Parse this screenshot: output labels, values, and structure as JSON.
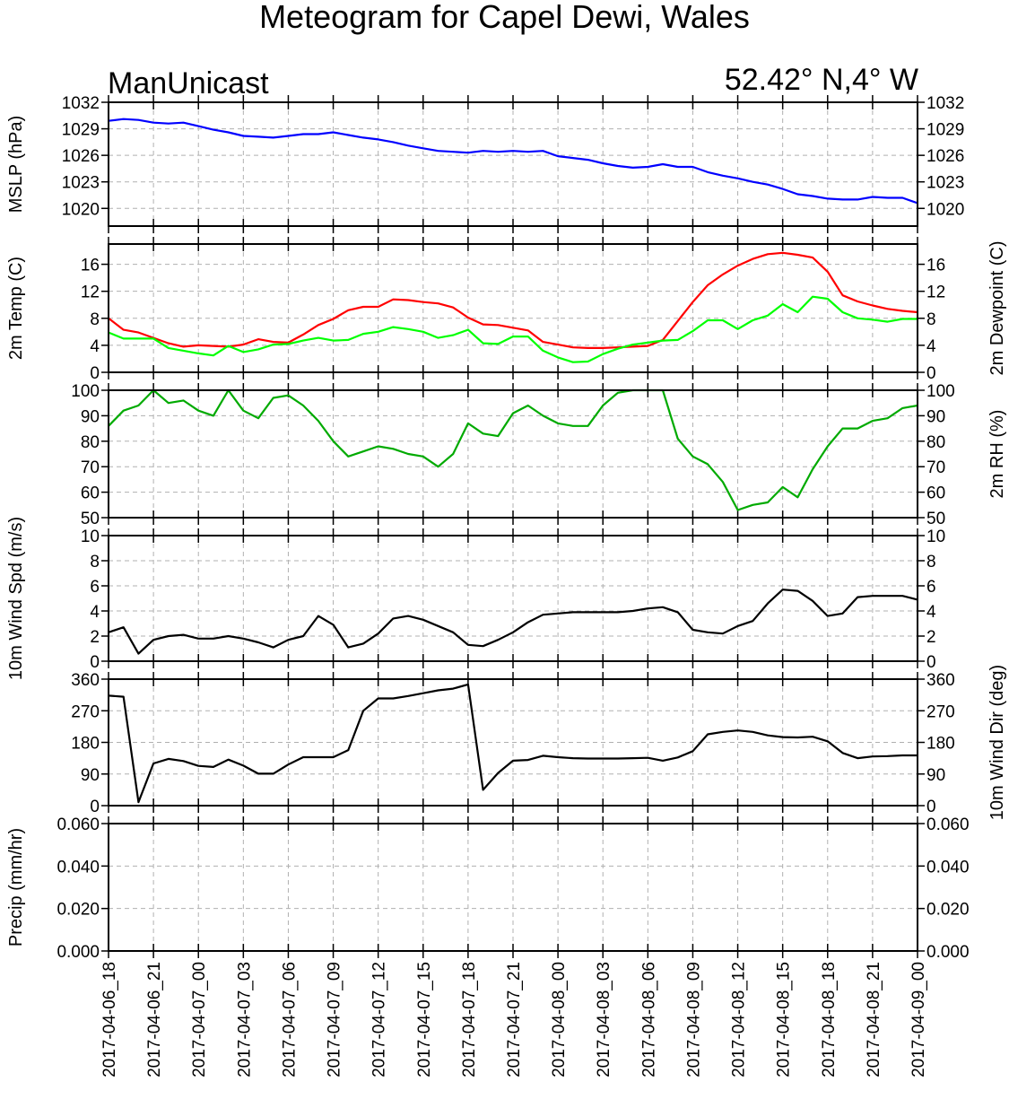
{
  "header": {
    "title": "Meteogram for Capel Dewi, Wales",
    "model": "ManUnicast",
    "location": "52.42° N,4° W"
  },
  "colors": {
    "mslp": "#0000ff",
    "temp": "#ff0000",
    "dewpoint": "#00ff00",
    "rh": "#00aa00",
    "wind": "#000000",
    "grid": "#b0b0b0"
  },
  "chart_data": {
    "type": "line",
    "grid": true,
    "x_ticks": [
      "2017-04-06_18",
      "2017-04-06_21",
      "2017-04-07_00",
      "2017-04-07_03",
      "2017-04-07_06",
      "2017-04-07_09",
      "2017-04-07_12",
      "2017-04-07_15",
      "2017-04-07_18",
      "2017-04-07_21",
      "2017-04-08_00",
      "2017-04-08_03",
      "2017-04-08_06",
      "2017-04-08_09",
      "2017-04-08_12",
      "2017-04-08_15",
      "2017-04-08_18",
      "2017-04-08_21",
      "2017-04-09_00"
    ],
    "x_hours": [
      0,
      1,
      2,
      3,
      4,
      5,
      6,
      7,
      8,
      9,
      10,
      11,
      12,
      13,
      14,
      15,
      16,
      17,
      18,
      19,
      20,
      21,
      22,
      23,
      24,
      25,
      26,
      27,
      28,
      29,
      30,
      31,
      32,
      33,
      34,
      35,
      36,
      37,
      38,
      39,
      40,
      41,
      42,
      43,
      44,
      45,
      46,
      47,
      48,
      49,
      50,
      51,
      52,
      53,
      54
    ],
    "panels": [
      {
        "id": "mslp",
        "ylabel_left": "MSLP (hPa)",
        "ylim": [
          1018,
          1032
        ],
        "yticks": [
          1020,
          1023,
          1026,
          1029,
          1032
        ],
        "tick_labels_right": true,
        "series": [
          {
            "color": "#0000ff",
            "values": [
              1029.9,
              1030.1,
              1030.0,
              1029.7,
              1029.6,
              1029.7,
              1029.3,
              1028.9,
              1028.6,
              1028.2,
              1028.1,
              1028.0,
              1028.2,
              1028.4,
              1028.4,
              1028.6,
              1028.3,
              1028.0,
              1027.8,
              1027.5,
              1027.1,
              1026.8,
              1026.5,
              1026.4,
              1026.3,
              1026.5,
              1026.4,
              1026.5,
              1026.4,
              1026.5,
              1025.9,
              1025.7,
              1025.5,
              1025.1,
              1024.8,
              1024.6,
              1024.7,
              1025.0,
              1024.7,
              1024.7,
              1024.1,
              1023.7,
              1023.4,
              1023.0,
              1022.7,
              1022.2,
              1021.6,
              1021.4,
              1021.1,
              1021.0,
              1021.0,
              1021.3,
              1021.2,
              1021.2,
              1020.6
            ]
          }
        ]
      },
      {
        "id": "temp",
        "ylabel_left": "2m Temp (C)",
        "ylabel_right": "2m Dewpoint (C)",
        "ylim": [
          0,
          19
        ],
        "yticks": [
          0,
          4,
          8,
          12,
          16
        ],
        "tick_labels_right": true,
        "series": [
          {
            "color": "#ff0000",
            "values": [
              8.0,
              6.3,
              5.9,
              5.1,
              4.3,
              3.8,
              4.0,
              3.9,
              3.8,
              4.1,
              4.9,
              4.5,
              4.4,
              5.6,
              7.0,
              7.9,
              9.2,
              9.7,
              9.7,
              10.8,
              10.7,
              10.4,
              10.2,
              9.6,
              8.1,
              7.1,
              7.0,
              6.6,
              6.2,
              4.5,
              4.1,
              3.7,
              3.6,
              3.6,
              3.7,
              3.8,
              3.9,
              4.8,
              7.6,
              10.4,
              12.9,
              14.5,
              15.8,
              16.8,
              17.5,
              17.7,
              17.4,
              17.0,
              14.9,
              11.4,
              10.5,
              9.9,
              9.4,
              9.1,
              8.9
            ]
          },
          {
            "color": "#00ff00",
            "values": [
              5.9,
              5.0,
              5.0,
              5.0,
              3.6,
              3.2,
              2.8,
              2.5,
              3.9,
              3.0,
              3.4,
              4.1,
              4.2,
              4.7,
              5.1,
              4.7,
              4.8,
              5.7,
              6.0,
              6.7,
              6.4,
              6.0,
              5.1,
              5.5,
              6.3,
              4.3,
              4.2,
              5.3,
              5.3,
              3.2,
              2.2,
              1.5,
              1.6,
              2.7,
              3.5,
              4.1,
              4.4,
              4.7,
              4.8,
              6.1,
              7.7,
              7.7,
              6.4,
              7.7,
              8.4,
              10.1,
              8.9,
              11.2,
              10.9,
              8.9,
              8.0,
              7.8,
              7.5,
              7.9,
              7.9
            ]
          }
        ]
      },
      {
        "id": "rh",
        "ylabel_right": "2m RH (%)",
        "ylim": [
          50,
          100
        ],
        "yticks": [
          50,
          60,
          70,
          80,
          90,
          100
        ],
        "tick_labels_right": true,
        "series": [
          {
            "color": "#00aa00",
            "values": [
              86,
              92,
              94,
              100,
              95,
              96,
              92,
              90,
              100,
              92,
              89,
              97,
              98,
              94,
              88,
              80,
              74,
              76,
              78,
              77,
              75,
              74,
              70,
              75,
              87,
              83,
              82,
              91,
              94,
              90,
              87,
              86,
              86,
              94,
              99,
              100,
              100,
              100,
              81,
              74,
              71,
              64,
              53,
              55,
              56,
              62,
              58,
              69,
              78,
              85,
              85,
              88,
              89,
              93,
              94
            ]
          }
        ]
      },
      {
        "id": "wspd",
        "ylabel_left": "10m Wind Spd (m/s)",
        "ylim": [
          0,
          10
        ],
        "yticks": [
          0,
          2,
          4,
          6,
          8,
          10
        ],
        "tick_labels_right": true,
        "series": [
          {
            "color": "#000000",
            "values": [
              2.3,
              2.7,
              0.6,
              1.7,
              2.0,
              2.1,
              1.8,
              1.8,
              2.0,
              1.8,
              1.5,
              1.1,
              1.7,
              2.0,
              3.6,
              2.9,
              1.1,
              1.4,
              2.2,
              3.4,
              3.6,
              3.3,
              2.8,
              2.3,
              1.3,
              1.2,
              1.7,
              2.3,
              3.1,
              3.7,
              3.8,
              3.9,
              3.9,
              3.9,
              3.9,
              4.0,
              4.2,
              4.3,
              3.9,
              2.5,
              2.3,
              2.2,
              2.8,
              3.2,
              4.6,
              5.7,
              5.6,
              4.8,
              3.6,
              3.8,
              5.1,
              5.2,
              5.2,
              5.2,
              4.9
            ]
          }
        ]
      },
      {
        "id": "wdir",
        "ylabel_right": "10m Wind Dir (deg)",
        "ylim": [
          0,
          360
        ],
        "yticks": [
          0,
          90,
          180,
          270,
          360
        ],
        "tick_labels_right": true,
        "series": [
          {
            "color": "#000000",
            "values": [
              313,
              310,
              10,
              120,
              133,
              127,
              113,
              110,
              131,
              114,
              91,
              91,
              117,
              138,
              138,
              138,
              158,
              270,
              305,
              305,
              312,
              320,
              328,
              333,
              345,
              45,
              93,
              128,
              130,
              142,
              138,
              135,
              134,
              134,
              134,
              135,
              136,
              128,
              137,
              155,
              203,
              210,
              214,
              210,
              200,
              195,
              194,
              196,
              183,
              150,
              135,
              140,
              141,
              143,
              143
            ]
          }
        ]
      },
      {
        "id": "precip",
        "ylabel_left": "Precip (mm/hr)",
        "ylim": [
          0,
          0.06
        ],
        "yticks": [
          0,
          0.02,
          0.04,
          0.06
        ],
        "ytick_labels": [
          "0.000",
          "0.020",
          "0.040",
          "0.060"
        ],
        "tick_labels_right": true,
        "series": []
      }
    ]
  }
}
